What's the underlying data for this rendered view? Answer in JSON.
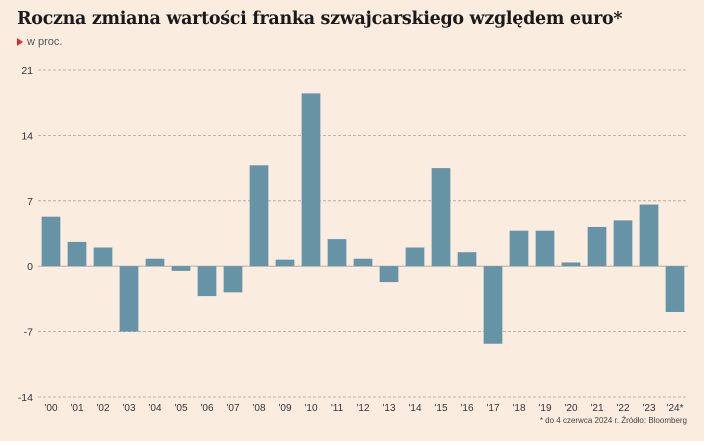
{
  "chart_data": {
    "type": "bar",
    "title": "Roczna zmiana wartości franka szwajcarskiego względem euro*",
    "subtitle": "w proc.",
    "categories": [
      "'00",
      "'01",
      "'02",
      "'03",
      "'04",
      "'05",
      "'06",
      "'07",
      "'08",
      "'09",
      "'10",
      "'11",
      "'12",
      "'13",
      "'14",
      "'15",
      "'16",
      "'17",
      "'18",
      "'19",
      "'20",
      "'21",
      "'22",
      "'23",
      "'24*"
    ],
    "values": [
      5.3,
      2.6,
      2.0,
      -7.0,
      0.8,
      -0.5,
      -3.2,
      -2.8,
      10.8,
      0.7,
      18.5,
      2.9,
      0.8,
      -1.7,
      2.0,
      10.5,
      1.5,
      -8.3,
      3.8,
      3.8,
      0.4,
      4.2,
      4.9,
      6.6,
      -4.9
    ],
    "yticks": [
      21,
      14,
      7,
      0,
      -7,
      -14
    ],
    "ylim": [
      -14,
      21
    ],
    "grid": true,
    "bar_color": "#6793a7",
    "footnote": "* do 4 czerwca 2024 r. Źródło: Bloomberg"
  }
}
